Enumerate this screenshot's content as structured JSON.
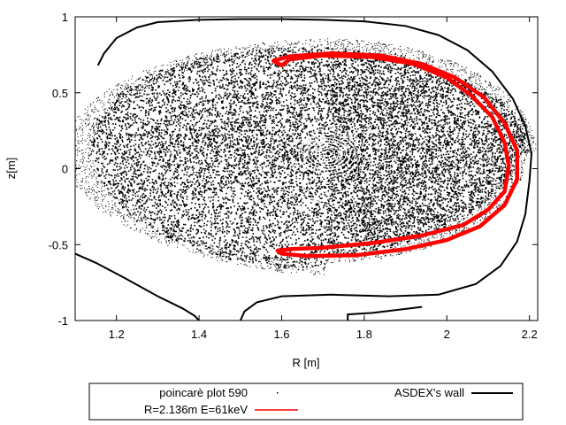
{
  "chart_data": {
    "type": "scatter",
    "title": "",
    "xlabel": "R [m]",
    "ylabel": "z[m]",
    "xlim": [
      1.1,
      2.22
    ],
    "ylim": [
      -1,
      1
    ],
    "x_ticks": [
      "1.2",
      "1.4",
      "1.6",
      "1.8",
      "2",
      "2.2"
    ],
    "y_ticks": [
      "1",
      "0.5",
      "0",
      "-0.5",
      "-1"
    ],
    "grid": false,
    "legend_placement": "below plot",
    "center": [
      1.71,
      0.11
    ],
    "series": [
      {
        "name": "poincarè plot 590",
        "style": "dots",
        "color": "#000000"
      },
      {
        "name": "ASDEX's wall",
        "style": "line",
        "color": "#000000",
        "points": [
          [
            1.155,
            0.68
          ],
          [
            1.17,
            0.76
          ],
          [
            1.2,
            0.86
          ],
          [
            1.25,
            0.93
          ],
          [
            1.3,
            0.965
          ],
          [
            1.4,
            0.98
          ],
          [
            1.5,
            0.985
          ],
          [
            1.6,
            0.985
          ],
          [
            1.7,
            0.98
          ],
          [
            1.8,
            0.97
          ],
          [
            1.9,
            0.94
          ],
          [
            1.98,
            0.88
          ],
          [
            2.05,
            0.78
          ],
          [
            2.11,
            0.64
          ],
          [
            2.16,
            0.46
          ],
          [
            2.19,
            0.28
          ],
          [
            2.205,
            0.1
          ],
          [
            2.2,
            -0.08
          ],
          [
            2.19,
            -0.3
          ],
          [
            2.17,
            -0.48
          ],
          [
            2.13,
            -0.64
          ],
          [
            2.07,
            -0.76
          ],
          [
            1.98,
            -0.83
          ],
          [
            1.86,
            -0.84
          ],
          [
            1.72,
            -0.83
          ],
          [
            1.6,
            -0.84
          ],
          [
            1.54,
            -0.88
          ],
          [
            1.51,
            -0.94
          ],
          [
            1.5,
            -1.0
          ]
        ],
        "points_left": [
          [
            1.1,
            -0.56
          ],
          [
            1.15,
            -0.62
          ],
          [
            1.22,
            -0.72
          ],
          [
            1.3,
            -0.84
          ],
          [
            1.36,
            -0.92
          ],
          [
            1.39,
            -0.97
          ],
          [
            1.4,
            -1.0
          ]
        ],
        "points_bottom_right": [
          [
            1.76,
            -1.0
          ],
          [
            1.76,
            -0.96
          ],
          [
            1.82,
            -0.95
          ],
          [
            1.94,
            -0.91
          ]
        ]
      },
      {
        "name": "R=2.136m E=61keV",
        "style": "line",
        "color": "#ff0000",
        "points": [
          [
            1.6,
            0.68
          ],
          [
            1.62,
            0.72
          ],
          [
            1.7,
            0.745
          ],
          [
            1.82,
            0.735
          ],
          [
            1.92,
            0.69
          ],
          [
            2.0,
            0.6
          ],
          [
            2.06,
            0.48
          ],
          [
            2.11,
            0.34
          ],
          [
            2.14,
            0.17
          ],
          [
            2.15,
            0.02
          ],
          [
            2.14,
            -0.15
          ],
          [
            2.1,
            -0.27
          ],
          [
            2.04,
            -0.37
          ],
          [
            1.94,
            -0.44
          ],
          [
            1.82,
            -0.49
          ],
          [
            1.7,
            -0.52
          ],
          [
            1.62,
            -0.53
          ],
          [
            1.59,
            -0.54
          ],
          [
            1.6,
            -0.56
          ],
          [
            1.66,
            -0.575
          ],
          [
            1.78,
            -0.57
          ],
          [
            1.9,
            -0.53
          ],
          [
            2.0,
            -0.47
          ],
          [
            2.08,
            -0.38
          ],
          [
            2.14,
            -0.24
          ],
          [
            2.17,
            -0.07
          ],
          [
            2.17,
            0.12
          ],
          [
            2.14,
            0.3
          ],
          [
            2.09,
            0.47
          ],
          [
            2.02,
            0.6
          ],
          [
            1.94,
            0.69
          ],
          [
            1.84,
            0.745
          ],
          [
            1.72,
            0.76
          ],
          [
            1.62,
            0.74
          ],
          [
            1.58,
            0.71
          ],
          [
            1.6,
            0.68
          ]
        ]
      }
    ]
  },
  "legend": {
    "entries": [
      "poincarè plot 590",
      "ASDEX's wall",
      "R=2.136m E=61keV"
    ]
  }
}
